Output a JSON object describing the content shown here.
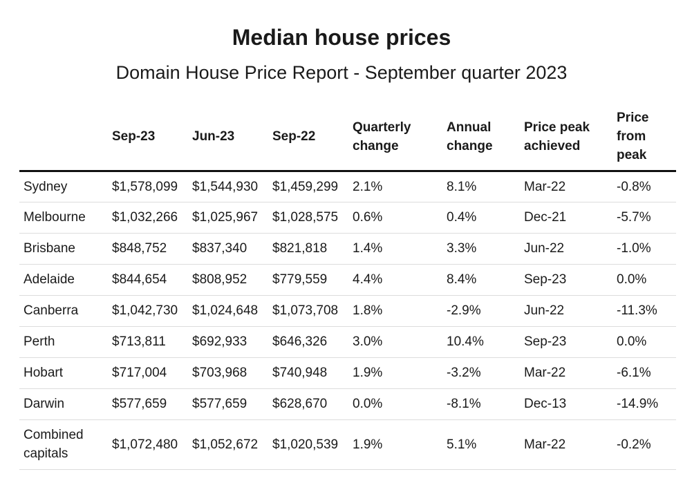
{
  "chart_data": {
    "type": "table",
    "title": "Median house prices",
    "subtitle": "Domain House Price Report - September quarter 2023",
    "columns": [
      "",
      "Sep-23",
      "Jun-23",
      "Sep-22",
      "Quarterly change",
      "Annual change",
      "Price peak achieved",
      "Price from peak"
    ],
    "rows": [
      [
        "Sydney",
        "$1,578,099",
        "$1,544,930",
        "$1,459,299",
        "2.1%",
        "8.1%",
        "Mar-22",
        "-0.8%"
      ],
      [
        "Melbourne",
        "$1,032,266",
        "$1,025,967",
        "$1,028,575",
        "0.6%",
        "0.4%",
        "Dec-21",
        "-5.7%"
      ],
      [
        "Brisbane",
        "$848,752",
        "$837,340",
        "$821,818",
        "1.4%",
        "3.3%",
        "Jun-22",
        "-1.0%"
      ],
      [
        "Adelaide",
        "$844,654",
        "$808,952",
        "$779,559",
        "4.4%",
        "8.4%",
        "Sep-23",
        "0.0%"
      ],
      [
        "Canberra",
        "$1,042,730",
        "$1,024,648",
        "$1,073,708",
        "1.8%",
        "-2.9%",
        "Jun-22",
        "-11.3%"
      ],
      [
        "Perth",
        "$713,811",
        "$692,933",
        "$646,326",
        "3.0%",
        "10.4%",
        "Sep-23",
        "0.0%"
      ],
      [
        "Hobart",
        "$717,004",
        "$703,968",
        "$740,948",
        "1.9%",
        "-3.2%",
        "Mar-22",
        "-6.1%"
      ],
      [
        "Darwin",
        "$577,659",
        "$577,659",
        "$628,670",
        "0.0%",
        "-8.1%",
        "Dec-13",
        "-14.9%"
      ],
      [
        "Combined capitals",
        "$1,072,480",
        "$1,052,672",
        "$1,020,539",
        "1.9%",
        "5.1%",
        "Mar-22",
        "-0.2%"
      ]
    ]
  }
}
